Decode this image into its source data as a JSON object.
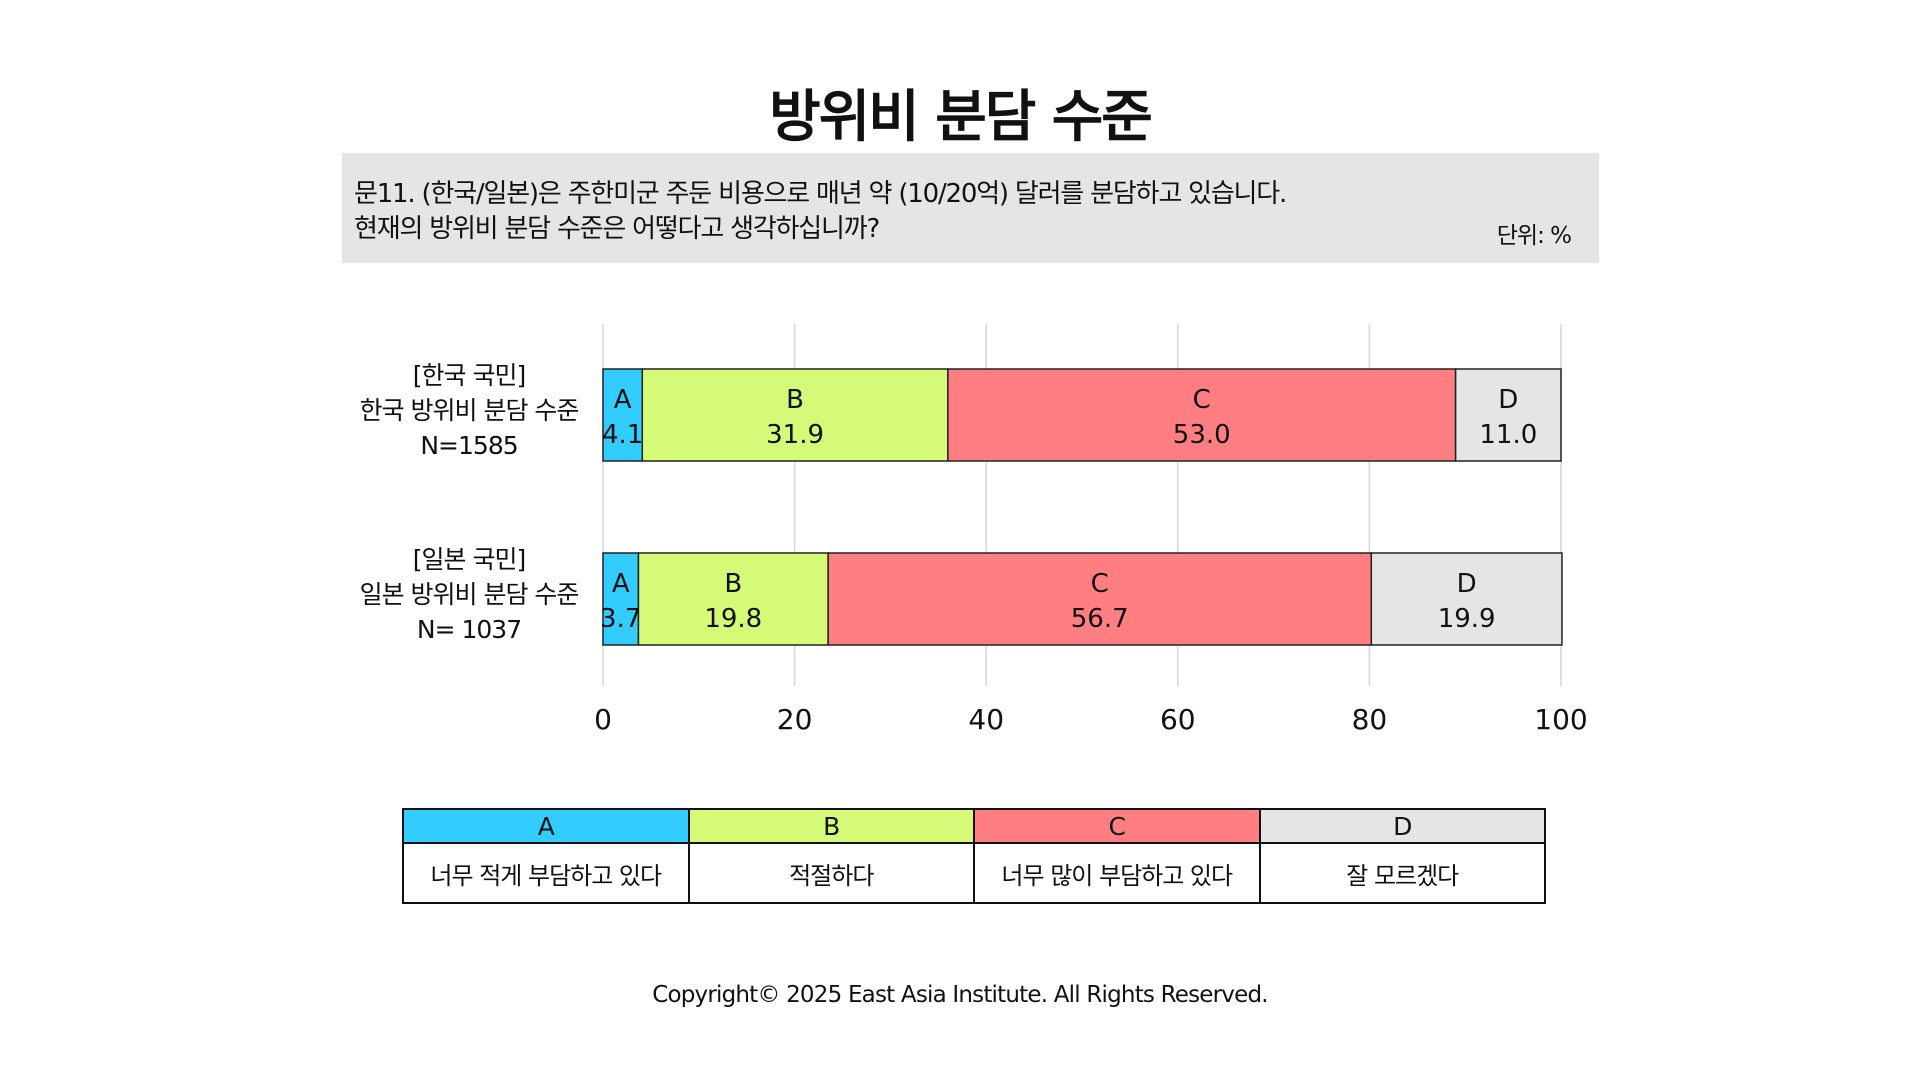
{
  "title": "방위비 분담 수준",
  "question": {
    "line1": "문11. (한국/일본)은 주한미군 주둔 비용으로 매년 약 (10/20억) 달러를 분담하고 있습니다.",
    "line2": "현재의 방위비 분담 수준은 어떻다고 생각하십니까?",
    "unit": "단위: %"
  },
  "chart_data": {
    "type": "bar",
    "orientation": "horizontal",
    "stacked": true,
    "xlim": [
      0,
      100
    ],
    "x_ticks": [
      0,
      20,
      40,
      60,
      80,
      100
    ],
    "grid": true,
    "categories": [
      [
        "[한국 국민]",
        "한국 방위비 분담 수준",
        "N=1585"
      ],
      [
        "[일본 국민]",
        "일본 방위비 분담 수준",
        "N= 1037"
      ]
    ],
    "series": [
      {
        "name": "A",
        "color": "#33ccff",
        "values": [
          4.1,
          3.7
        ]
      },
      {
        "name": "B",
        "color": "#d4fa78",
        "values": [
          31.9,
          19.8
        ]
      },
      {
        "name": "C",
        "color": "#ff7e82",
        "values": [
          53.0,
          56.7
        ]
      },
      {
        "name": "D",
        "color": "#e5e5e5",
        "values": [
          11.0,
          19.9
        ]
      }
    ],
    "value_labels": [
      [
        "4.1",
        "31.9",
        "53.0",
        "11.0"
      ],
      [
        "3.7",
        "19.8",
        "56.7",
        "19.9"
      ]
    ]
  },
  "legend": [
    {
      "key": "A",
      "label": "너무 적게 부담하고 있다",
      "color": "#33ccff"
    },
    {
      "key": "B",
      "label": "적절하다",
      "color": "#d4fa78"
    },
    {
      "key": "C",
      "label": "너무 많이 부담하고 있다",
      "color": "#ff7e82"
    },
    {
      "key": "D",
      "label": "잘 모르겠다",
      "color": "#e5e5e5"
    }
  ],
  "copyright": "Copyright© 2025 East Asia Institute. All Rights Reserved."
}
